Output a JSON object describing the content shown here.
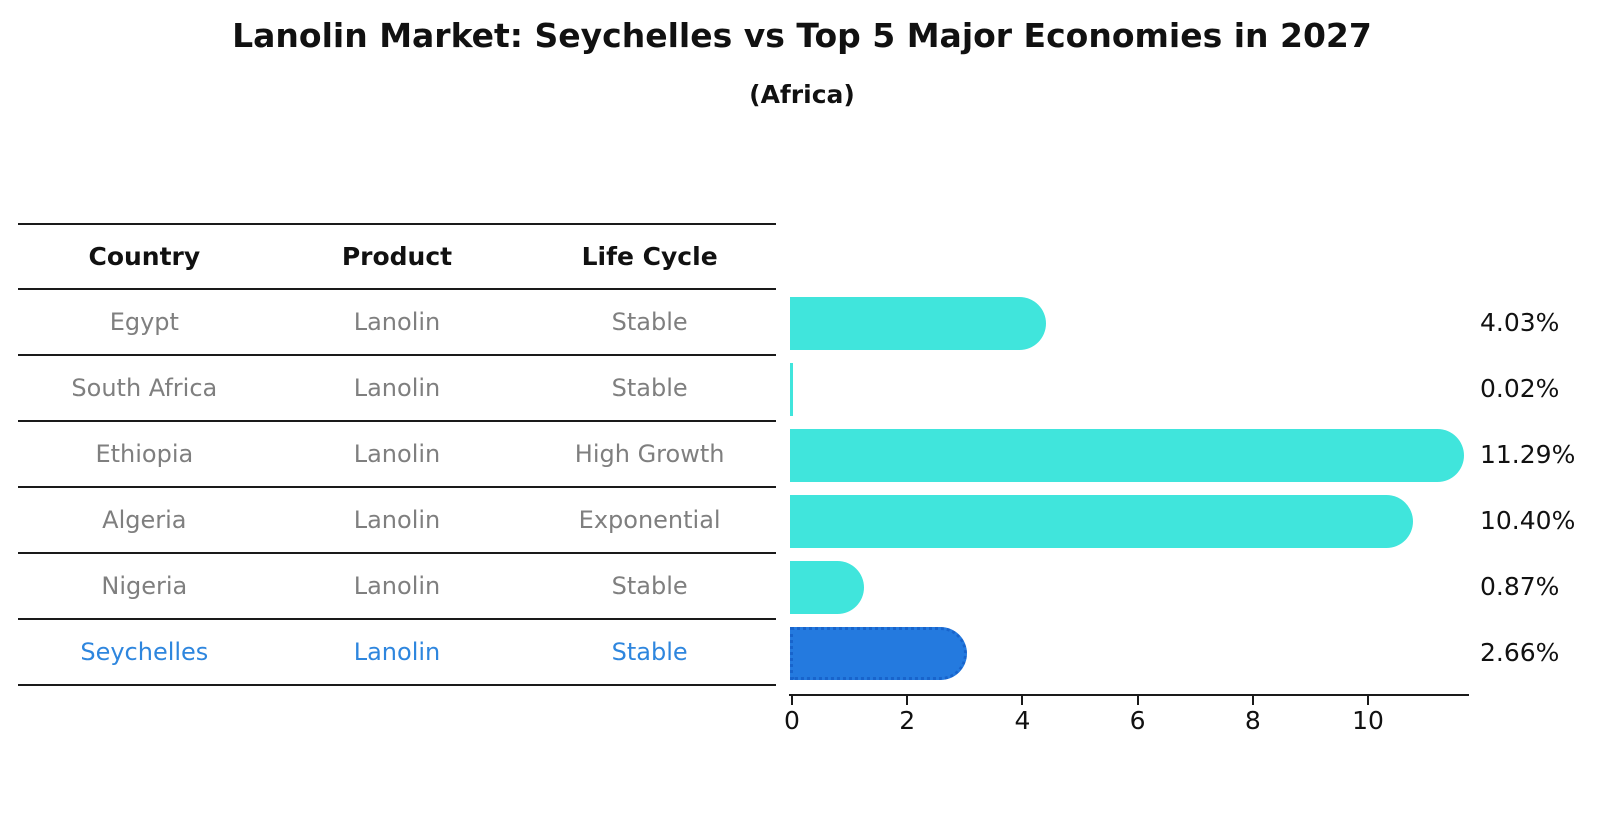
{
  "title": "Lanolin Market: Seychelles vs Top 5 Major Economies in 2027",
  "subtitle": "(Africa)",
  "table": {
    "headers": [
      "Country",
      "Product",
      "Life Cycle"
    ],
    "rows": [
      {
        "country": "Egypt",
        "product": "Lanolin",
        "life_cycle": "Stable",
        "highlight": false
      },
      {
        "country": "South Africa",
        "product": "Lanolin",
        "life_cycle": "Stable",
        "highlight": false
      },
      {
        "country": "Ethiopia",
        "product": "Lanolin",
        "life_cycle": "High Growth",
        "highlight": false
      },
      {
        "country": "Algeria",
        "product": "Lanolin",
        "life_cycle": "Exponential",
        "highlight": false
      },
      {
        "country": "Nigeria",
        "product": "Lanolin",
        "life_cycle": "Stable",
        "highlight": false
      },
      {
        "country": "Seychelles",
        "product": "Lanolin",
        "life_cycle": "Stable",
        "highlight": true
      }
    ]
  },
  "chart_data": {
    "type": "bar",
    "orientation": "horizontal",
    "title": "Lanolin Market: Seychelles vs Top 5 Major Economies in 2027",
    "subtitle": "(Africa)",
    "categories": [
      "Egypt",
      "South Africa",
      "Ethiopia",
      "Algeria",
      "Nigeria",
      "Seychelles"
    ],
    "values": [
      4.03,
      0.02,
      11.29,
      10.4,
      0.87,
      2.66
    ],
    "value_labels": [
      "4.03%",
      "0.02%",
      "11.29%",
      "10.40%",
      "0.87%",
      "2.66%"
    ],
    "highlight_index": 5,
    "xticks": [
      0,
      2,
      4,
      6,
      8,
      10
    ],
    "xlim": [
      0,
      11.77
    ],
    "grid": false,
    "legend": false,
    "colors": {
      "bar": "#40E5DC",
      "highlight_bar": "#247ADF",
      "highlight_border": "#1864CC",
      "highlight_text": "#2E86DE",
      "table_text": "#7f7f7f",
      "axis": "#1a1a1a"
    }
  }
}
